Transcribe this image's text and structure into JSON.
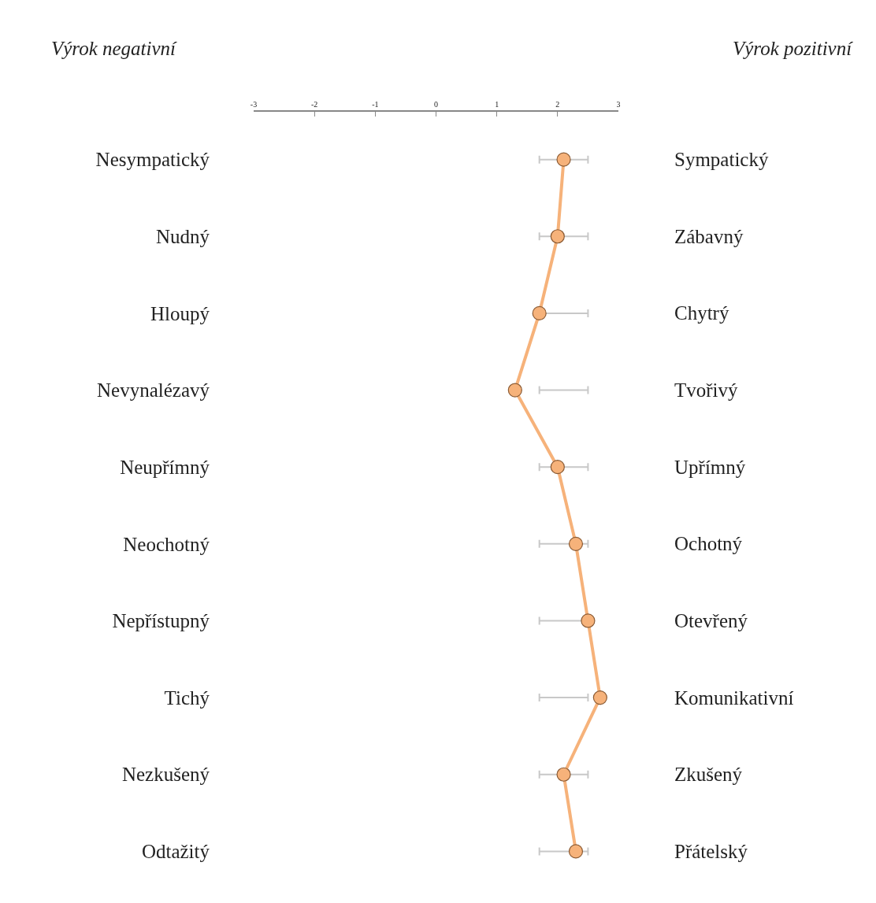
{
  "chart_data": {
    "type": "line",
    "orientation": "horizontal",
    "ylabel": "Výrok negativní",
    "categories": [
      "Nesympatický",
      "Nudný",
      "Hloupý",
      "Nevynalézavý",
      "Neupřímný",
      "Neochotný",
      "Nepřístupný",
      "Tichý",
      "Nezkušený",
      "Odtažitý"
    ],
    "series": [
      {
        "color": "#f6b27a",
        "values": [
          2.1,
          2.0,
          1.7,
          1.3,
          2.0,
          2.3,
          2.5,
          2.7,
          2.1,
          2.3
        ],
        "errors": [
          [
            1.7,
            2.5
          ],
          [
            1.7,
            2.5
          ],
          [
            1.7,
            2.5
          ],
          [
            1.7,
            2.5
          ],
          [
            1.7,
            2.5
          ],
          [
            1.7,
            2.5
          ],
          [
            1.7,
            2.5
          ],
          [
            1.7,
            2.5
          ],
          [
            1.7,
            2.5
          ],
          [
            1.7,
            2.5
          ]
        ]
      }
    ],
    "annotations": [
      "Sympatický",
      "Zábavný",
      "Chytrý",
      "Tvořivý",
      "Upřímný",
      "Ochotný",
      "Otevřený",
      "Komunikativní",
      "Zkušený",
      "Přátelský",
      "Výrok pozitivní"
    ],
    "xlim": [
      -3,
      3
    ],
    "xticks": [
      -3,
      -2,
      -1,
      0,
      1,
      2,
      3
    ],
    "grid": false,
    "marker": "circle",
    "line_style": "solid"
  }
}
